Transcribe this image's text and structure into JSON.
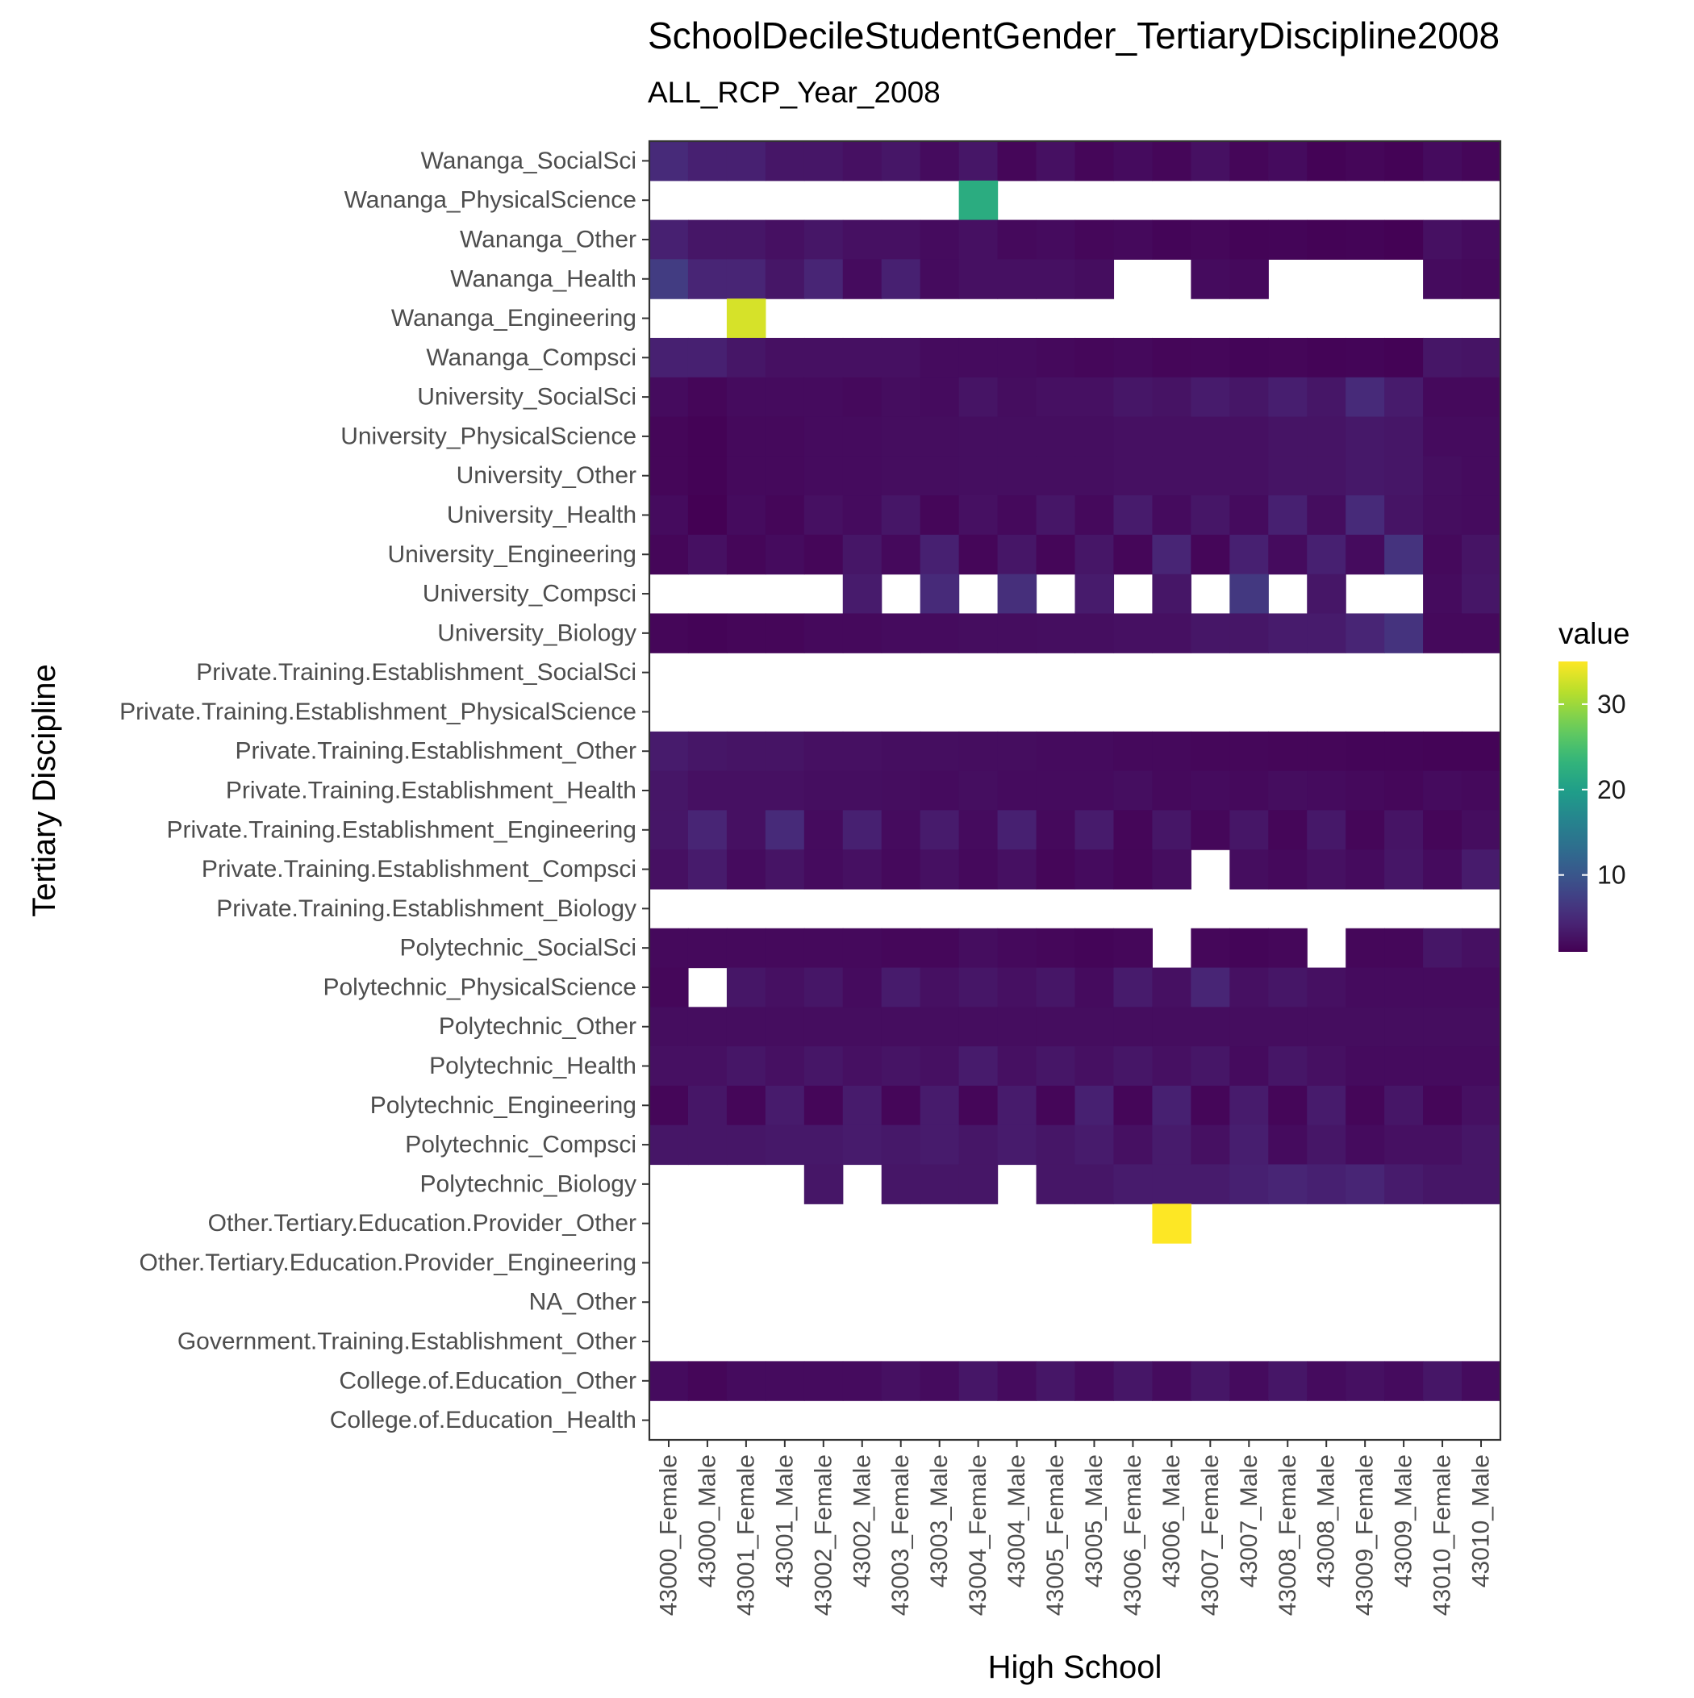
{
  "chart_data": {
    "type": "heatmap",
    "title": "SchoolDecileStudentGender_TertiaryDiscipline2008",
    "subtitle": "ALL_RCP_Year_2008",
    "xlabel": "High School",
    "ylabel": "Tertiary Discipline",
    "x_categories": [
      "43000_Female",
      "43000_Male",
      "43001_Female",
      "43001_Male",
      "43002_Female",
      "43002_Male",
      "43003_Female",
      "43003_Male",
      "43004_Female",
      "43004_Male",
      "43005_Female",
      "43005_Male",
      "43006_Female",
      "43006_Male",
      "43007_Female",
      "43007_Male",
      "43008_Female",
      "43008_Male",
      "43009_Female",
      "43009_Male",
      "43010_Female",
      "43010_Male"
    ],
    "y_categories": [
      "Wananga_SocialSci",
      "Wananga_PhysicalScience",
      "Wananga_Other",
      "Wananga_Health",
      "Wananga_Engineering",
      "Wananga_Compsci",
      "University_SocialSci",
      "University_PhysicalScience",
      "University_Other",
      "University_Health",
      "University_Engineering",
      "University_Compsci",
      "University_Biology",
      "Private.Training.Establishment_SocialSci",
      "Private.Training.Establishment_PhysicalScience",
      "Private.Training.Establishment_Other",
      "Private.Training.Establishment_Health",
      "Private.Training.Establishment_Engineering",
      "Private.Training.Establishment_Compsci",
      "Private.Training.Establishment_Biology",
      "Polytechnic_SocialSci",
      "Polytechnic_PhysicalScience",
      "Polytechnic_Other",
      "Polytechnic_Health",
      "Polytechnic_Engineering",
      "Polytechnic_Compsci",
      "Polytechnic_Biology",
      "Other.Tertiary.Education.Provider_Other",
      "Other.Tertiary.Education.Provider_Engineering",
      "NA_Other",
      "Government.Training.Establishment_Other",
      "College.of.Education_Other",
      "College.of.Education_Health"
    ],
    "values": [
      [
        5,
        4,
        4,
        3,
        3,
        2.5,
        3,
        2,
        3,
        1.5,
        2.5,
        1.5,
        2,
        1.5,
        2.5,
        1.5,
        2,
        1.2,
        1.5,
        1.2,
        2,
        1.5
      ],
      [
        null,
        null,
        null,
        null,
        null,
        null,
        null,
        null,
        22,
        null,
        null,
        null,
        null,
        null,
        null,
        null,
        null,
        null,
        null,
        null,
        null,
        null
      ],
      [
        4,
        3,
        3,
        2.5,
        3,
        2.5,
        2.5,
        2,
        2.5,
        1.8,
        2,
        1.6,
        1.8,
        1.4,
        1.6,
        1.3,
        1.4,
        1.2,
        1.3,
        1.1,
        2.5,
        2
      ],
      [
        7,
        4.5,
        4.5,
        3,
        4.5,
        2,
        4,
        2,
        2.5,
        2.5,
        2.5,
        2.2,
        null,
        null,
        2,
        1.8,
        null,
        null,
        null,
        null,
        2,
        1.8
      ],
      [
        null,
        null,
        33,
        null,
        null,
        null,
        null,
        null,
        null,
        null,
        null,
        null,
        null,
        null,
        null,
        null,
        null,
        null,
        null,
        null,
        null,
        null
      ],
      [
        4,
        4,
        3,
        2.5,
        2.5,
        2.5,
        2.5,
        2,
        2,
        2,
        1.8,
        1.6,
        1.8,
        1.5,
        1.6,
        1.4,
        1.5,
        1.3,
        1.4,
        1.2,
        3,
        2.8
      ],
      [
        2,
        1.5,
        2,
        2,
        2,
        1.8,
        2.2,
        2,
        2.8,
        2.2,
        2.5,
        2.5,
        3,
        2.7,
        3.5,
        3,
        3.8,
        3,
        5,
        3.5,
        1.8,
        1.8
      ],
      [
        1.5,
        1.2,
        1.8,
        1.8,
        2,
        2,
        2.2,
        2.2,
        2.3,
        2.3,
        2.3,
        2.3,
        2.5,
        2.5,
        2.5,
        2.5,
        2.8,
        2.8,
        3.2,
        3,
        2,
        2
      ],
      [
        1.5,
        1.2,
        1.8,
        1.8,
        2,
        2,
        2.2,
        2.2,
        2.3,
        2.3,
        2.3,
        2.3,
        2.5,
        2.5,
        2.5,
        2.5,
        2.8,
        2.8,
        3.2,
        3,
        2.3,
        2
      ],
      [
        2,
        1,
        2,
        1.5,
        2.5,
        2,
        3,
        1.5,
        2.5,
        1.8,
        3,
        1.8,
        3.5,
        2,
        3,
        2,
        4,
        2.2,
        5,
        2.8,
        2.2,
        2
      ],
      [
        1.5,
        2.5,
        1.5,
        2,
        1.5,
        3,
        1.8,
        4,
        1.5,
        3,
        1.5,
        3,
        1.5,
        4.5,
        1.5,
        4,
        2,
        4,
        2,
        6,
        1.8,
        2.8
      ],
      [
        null,
        null,
        null,
        null,
        null,
        3.5,
        null,
        5,
        null,
        5.5,
        null,
        3.5,
        null,
        3,
        null,
        6.5,
        null,
        3,
        null,
        null,
        2,
        3
      ],
      [
        1.5,
        1.3,
        1.5,
        1.5,
        1.8,
        1.8,
        2,
        2,
        2.2,
        2.2,
        2.3,
        2.3,
        2.5,
        2.5,
        3,
        3,
        3.5,
        3.5,
        4.5,
        6,
        1.8,
        1.8
      ],
      [
        null,
        null,
        null,
        null,
        null,
        null,
        null,
        null,
        null,
        null,
        null,
        null,
        null,
        null,
        null,
        null,
        null,
        null,
        null,
        null,
        null,
        null
      ],
      [
        null,
        null,
        null,
        null,
        null,
        null,
        null,
        null,
        null,
        null,
        null,
        null,
        null,
        null,
        null,
        null,
        null,
        null,
        null,
        null,
        null,
        null
      ],
      [
        3.5,
        3,
        2.8,
        2.8,
        2.5,
        2.5,
        2.3,
        2.3,
        2.2,
        2.2,
        2,
        2,
        1.8,
        1.8,
        1.6,
        1.6,
        1.5,
        1.5,
        1.4,
        1.4,
        1.3,
        1.3
      ],
      [
        3,
        2.5,
        2.5,
        2.5,
        2.3,
        2.3,
        2.2,
        2,
        2.3,
        2,
        2,
        2,
        2.3,
        1.8,
        2,
        1.8,
        2.2,
        2,
        1.8,
        1.6,
        2,
        1.8
      ],
      [
        3,
        4.5,
        2.5,
        5,
        2,
        4,
        2,
        3.5,
        2,
        4,
        1.8,
        3.5,
        1.5,
        3,
        1.6,
        3,
        1.5,
        3.2,
        1.5,
        2.8,
        1.5,
        2.2
      ],
      [
        2.5,
        3.5,
        2,
        2.8,
        2,
        2.5,
        1.8,
        2.5,
        1.8,
        2.5,
        1.5,
        2,
        1.5,
        2.2,
        null,
        2.2,
        1.8,
        2.5,
        2,
        3,
        2,
        3.5
      ],
      [
        null,
        null,
        null,
        null,
        null,
        null,
        null,
        null,
        null,
        null,
        null,
        null,
        null,
        null,
        null,
        null,
        null,
        null,
        null,
        null,
        null,
        null
      ],
      [
        1.8,
        1.8,
        1.8,
        1.8,
        1.8,
        1.8,
        1.6,
        1.6,
        2.2,
        1.8,
        1.6,
        1.4,
        1.6,
        null,
        1.6,
        1.4,
        1.6,
        null,
        1.6,
        1.6,
        3,
        2.5
      ],
      [
        1.6,
        null,
        3,
        2.5,
        3,
        2,
        3.5,
        2.5,
        3,
        2.5,
        3,
        2,
        3.5,
        2.5,
        4.5,
        2.5,
        3,
        2.5,
        2,
        2,
        2,
        2
      ],
      [
        2.2,
        2.2,
        2.2,
        2.2,
        2.2,
        2.2,
        2.2,
        2.2,
        2.2,
        2.2,
        2.2,
        2.2,
        2.2,
        2.2,
        2.2,
        2.2,
        2.2,
        2.2,
        2.2,
        2.2,
        2.2,
        2.2
      ],
      [
        2.5,
        2.5,
        3,
        2.5,
        3,
        2.5,
        2.8,
        2.5,
        3.5,
        2.5,
        3,
        2.5,
        3,
        2.5,
        3,
        2,
        3,
        2.5,
        2,
        2,
        2,
        2
      ],
      [
        1.5,
        3,
        1.5,
        3.5,
        1.5,
        3.5,
        1.5,
        3.5,
        1.5,
        3.5,
        1.5,
        4,
        1.5,
        4,
        1.5,
        3.5,
        1.5,
        3.5,
        1.5,
        3,
        1.5,
        2.5
      ],
      [
        3,
        3,
        3,
        3.2,
        3.2,
        3.5,
        3.2,
        3.5,
        3,
        3.5,
        3,
        3.5,
        2.5,
        3.5,
        2.5,
        3.8,
        2,
        3,
        2,
        2.5,
        2.5,
        3
      ],
      [
        null,
        null,
        null,
        null,
        3,
        null,
        3,
        3,
        3,
        null,
        3,
        3,
        3.5,
        3.5,
        3.5,
        4,
        4.5,
        4,
        4.5,
        3.5,
        3,
        3
      ],
      [
        null,
        null,
        null,
        null,
        null,
        null,
        null,
        null,
        null,
        null,
        null,
        null,
        null,
        35,
        null,
        null,
        null,
        null,
        null,
        null,
        null,
        null
      ],
      [
        null,
        null,
        null,
        null,
        null,
        null,
        null,
        null,
        null,
        null,
        null,
        null,
        null,
        null,
        null,
        null,
        null,
        null,
        null,
        null,
        null,
        null
      ],
      [
        null,
        null,
        null,
        null,
        null,
        null,
        null,
        null,
        null,
        null,
        null,
        null,
        null,
        null,
        null,
        null,
        null,
        null,
        null,
        null,
        null,
        null
      ],
      [
        null,
        null,
        null,
        null,
        null,
        null,
        null,
        null,
        null,
        null,
        null,
        null,
        null,
        null,
        null,
        null,
        null,
        null,
        null,
        null,
        null,
        null
      ],
      [
        2,
        1.5,
        2,
        2,
        2,
        2,
        2.5,
        2,
        3,
        2,
        3,
        2,
        3,
        2,
        3,
        2,
        3,
        2,
        2.5,
        2,
        3,
        2
      ],
      [
        null,
        null,
        null,
        null,
        null,
        null,
        null,
        null,
        null,
        null,
        null,
        null,
        null,
        null,
        null,
        null,
        null,
        null,
        null,
        null,
        null,
        null
      ]
    ],
    "colorscale": "viridis",
    "vmin": 1,
    "vmax": 35,
    "missing_color": "#ffffff",
    "legend": {
      "title": "value",
      "ticks": [
        10,
        20,
        30
      ],
      "placement": "right"
    },
    "grid": false
  }
}
